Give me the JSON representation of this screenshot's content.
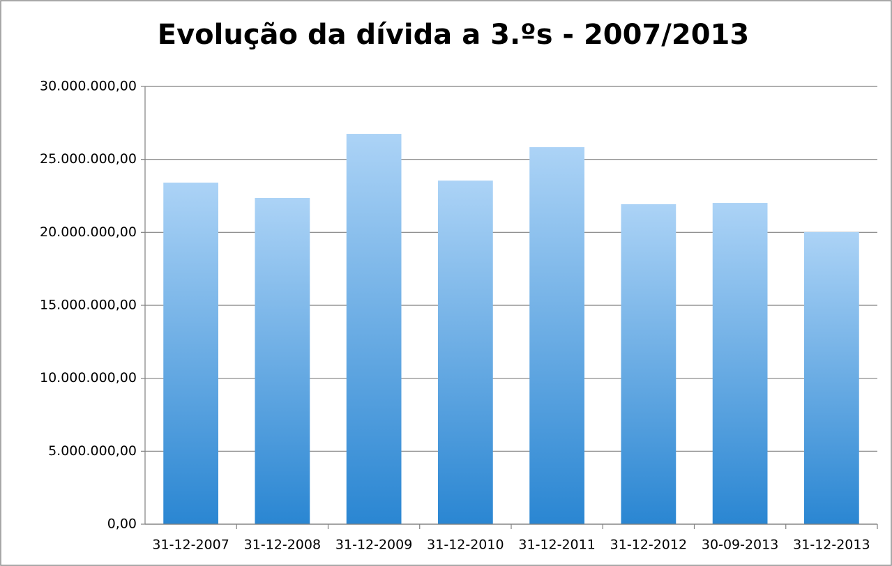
{
  "chart_data": {
    "type": "bar",
    "title": "Evolução da dívida a 3.ºs - 2007/2013",
    "categories": [
      "31-12-2007",
      "31-12-2008",
      "31-12-2009",
      "31-12-2010",
      "31-12-2011",
      "31-12-2012",
      "30-09-2013",
      "31-12-2013"
    ],
    "values": [
      23410000,
      22360000,
      26750000,
      23550000,
      25840000,
      21930000,
      22020000,
      20020000
    ],
    "color": "#2a86d2",
    "ylim": [
      0,
      30000000
    ],
    "yticks": [
      {
        "value": 0,
        "label": "0,00"
      },
      {
        "value": 5000000,
        "label": "5.000.000,00"
      },
      {
        "value": 10000000,
        "label": "10.000.000,00"
      },
      {
        "value": 15000000,
        "label": "15.000.000,00"
      },
      {
        "value": 20000000,
        "label": "20.000.000,00"
      },
      {
        "value": 25000000,
        "label": "25.000.000,00"
      },
      {
        "value": 30000000,
        "label": "30.000.000,00"
      }
    ],
    "grid": true
  }
}
